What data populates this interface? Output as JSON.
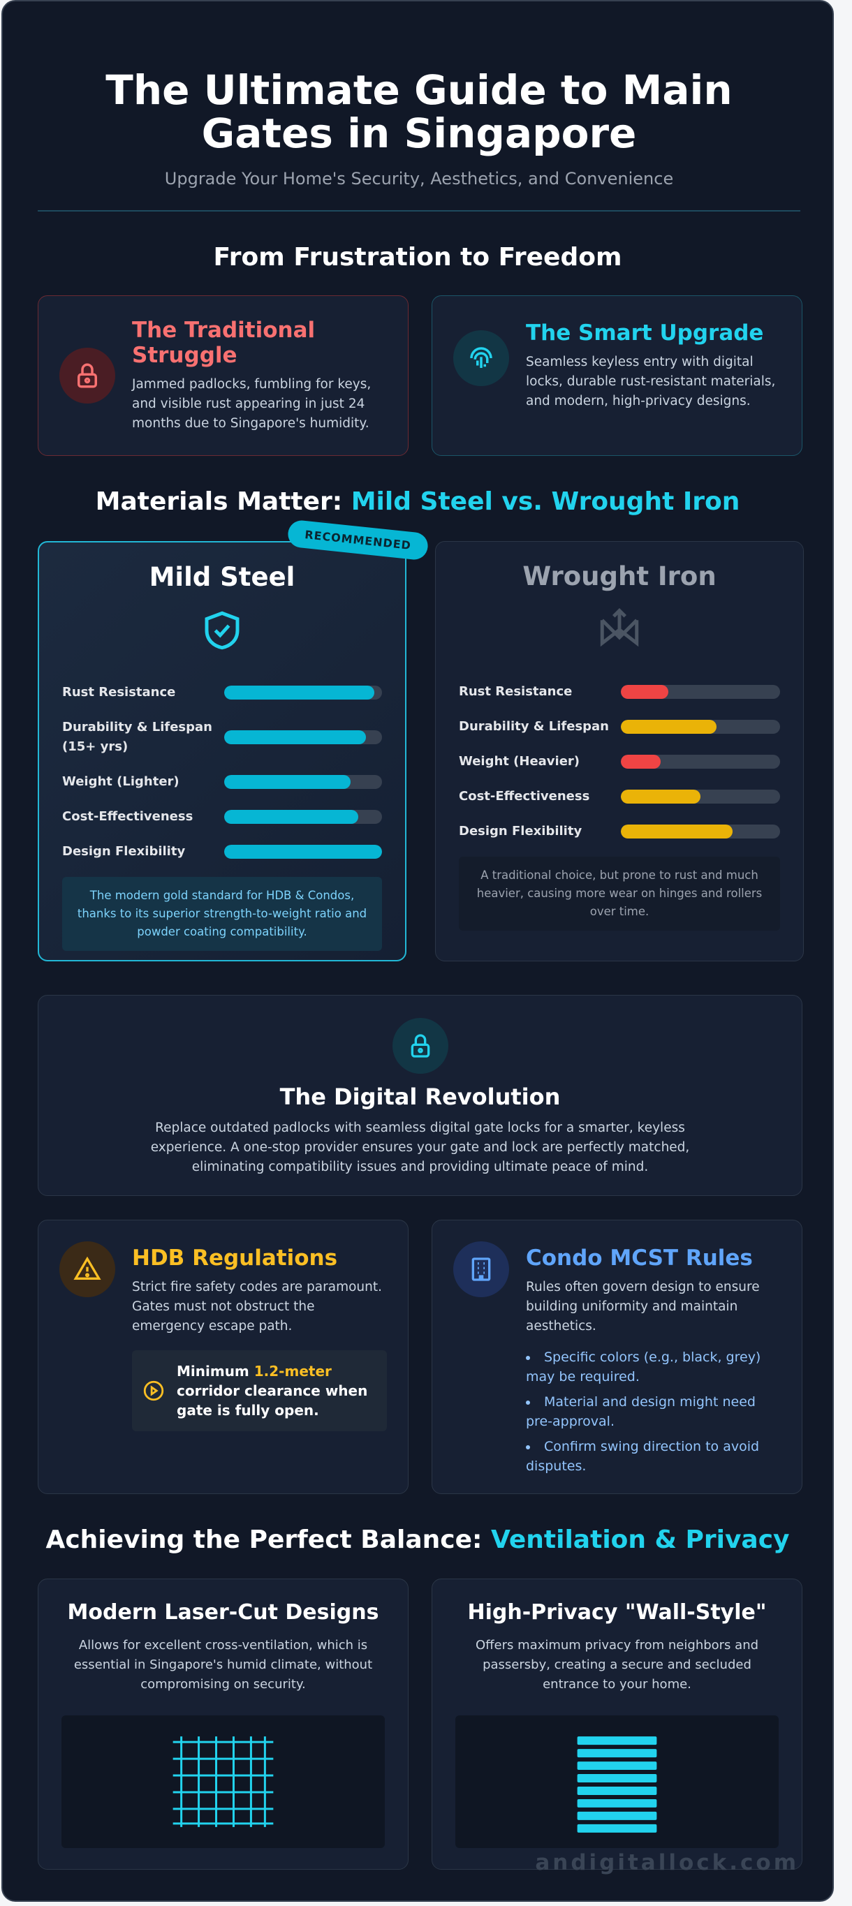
{
  "header": {
    "title": "The Ultimate Guide to Main Gates in Singapore",
    "subtitle": "Upgrade Your Home's Security, Aesthetics, and Convenience"
  },
  "transformation": {
    "heading": "From Frustration to Freedom",
    "cards": [
      {
        "title": "The Traditional Struggle",
        "text": "Jammed padlocks, fumbling for keys, and visible rust appearing in just 24 months due to Singapore's humidity."
      },
      {
        "title": "The Smart Upgrade",
        "text": "Seamless keyless entry with digital locks, durable rust-resistant materials, and modern, high-privacy designs."
      }
    ]
  },
  "materials": {
    "lead": "Materials Matter:",
    "highlight": "Mild Steel vs. Wrought Iron",
    "xlim": [
      0,
      100
    ],
    "cards": [
      {
        "badge": "RECOMMENDED",
        "title": "Mild Steel",
        "ratings": [
          {
            "label": "Rust Resistance",
            "value": 95,
            "color": "#06b6d4"
          },
          {
            "label": "Durability & Lifespan (15+ yrs)",
            "value": 90,
            "color": "#06b6d4"
          },
          {
            "label": "Weight (Lighter)",
            "value": 80,
            "color": "#06b6d4"
          },
          {
            "label": "Cost-Effectiveness",
            "value": 85,
            "color": "#06b6d4"
          },
          {
            "label": "Design Flexibility",
            "value": 100,
            "color": "#06b6d4"
          }
        ],
        "note": "The modern gold standard for HDB & Condos, thanks to its superior strength-to-weight ratio and powder coating compatibility."
      },
      {
        "title": "Wrought Iron",
        "ratings": [
          {
            "label": "Rust Resistance",
            "value": 30,
            "color": "#ef4444"
          },
          {
            "label": "Durability & Lifespan",
            "value": 60,
            "color": "#eab308"
          },
          {
            "label": "Weight (Heavier)",
            "value": 25,
            "color": "#ef4444"
          },
          {
            "label": "Cost-Effectiveness",
            "value": 50,
            "color": "#eab308"
          },
          {
            "label": "Design Flexibility",
            "value": 70,
            "color": "#eab308"
          }
        ],
        "note": "A traditional choice, but prone to rust and much heavier, causing more wear on hinges and rollers over time."
      }
    ]
  },
  "digital": {
    "title": "The Digital Revolution",
    "text": "Replace outdated padlocks with seamless digital gate locks for a smarter, keyless experience. A one-stop provider ensures your gate and lock are perfectly matched, eliminating compatibility issues and providing ultimate peace of mind."
  },
  "regulations": [
    {
      "title": "HDB Regulations",
      "text": "Strict fire safety codes are paramount. Gates must not obstruct the emergency escape path.",
      "callout": [
        "Minimum",
        "1.2-meter",
        "corridor clearance when gate is fully open."
      ]
    },
    {
      "title": "Condo MCST Rules",
      "text": "Rules often govern design to ensure building uniformity and maintain aesthetics.",
      "bullets": [
        "Specific colors (e.g., black, grey) may be required.",
        "Material and design might need pre-approval.",
        "Confirm swing direction to avoid disputes."
      ]
    }
  ],
  "balance": {
    "lead": "Achieving the Perfect Balance:",
    "highlight": "Ventilation & Privacy",
    "cards": [
      {
        "title": "Modern Laser-Cut Designs",
        "text": "Allows for excellent cross-ventilation, which is essential in Singapore's humid climate, without compromising on security."
      },
      {
        "title": "High-Privacy \"Wall-Style\"",
        "text": "Offers maximum privacy from neighbors and passersby, creating a secure and secluded entrance to your home."
      }
    ]
  },
  "watermark": "andigitallock.com"
}
